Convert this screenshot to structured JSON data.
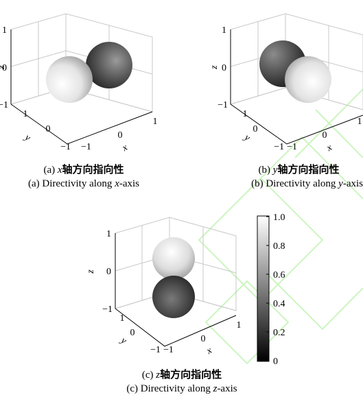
{
  "panels": [
    {
      "id": "a",
      "axis_labels": {
        "x": "x",
        "y": "y",
        "z": "z"
      },
      "ticks": {
        "z": [
          "1",
          "0",
          "−1"
        ],
        "y": [
          "1",
          "0",
          "−1"
        ],
        "x": [
          "−1",
          "0",
          "1"
        ]
      },
      "lobes": [
        "+x",
        "−x"
      ],
      "caption_cn": {
        "prefix": "(a) ",
        "var": "x",
        "text": "轴方向指向性"
      },
      "caption_en": {
        "prefix": "(a) Directivity along ",
        "var": "x",
        "suffix": "-axis"
      }
    },
    {
      "id": "b",
      "axis_labels": {
        "x": "x",
        "y": "y",
        "z": "z"
      },
      "ticks": {
        "z": [
          "1",
          "0",
          "−1"
        ],
        "y": [
          "1",
          "0",
          "−1"
        ],
        "x": [
          "−1",
          "0",
          "1"
        ]
      },
      "lobes": [
        "+y",
        "−y"
      ],
      "caption_cn": {
        "prefix": "(b) ",
        "var": "y",
        "text": "轴方向指向性"
      },
      "caption_en": {
        "prefix": "(b) Directivity along ",
        "var": "y",
        "suffix": "-axis"
      }
    },
    {
      "id": "c",
      "axis_labels": {
        "x": "x",
        "y": "y",
        "z": "z"
      },
      "ticks": {
        "z": [
          "1",
          "0",
          "−1"
        ],
        "y": [
          "1",
          "0",
          "−1"
        ],
        "x": [
          "−1",
          "0",
          "1"
        ]
      },
      "lobes": [
        "+z",
        "−z"
      ],
      "caption_cn": {
        "prefix": "(c) ",
        "var": "z",
        "text": "轴方向指向性"
      },
      "caption_en": {
        "prefix": "(c) Directivity along ",
        "var": "z",
        "suffix": "-axis"
      }
    }
  ],
  "colorbar": {
    "ticks": [
      "1.0",
      "0.8",
      "0.6",
      "0.4",
      "0.2",
      "0"
    ],
    "min": 0,
    "max": 1,
    "colormap": "gray",
    "color_low": "#000000",
    "color_high": "#ffffff"
  },
  "watermark_color": "#ccf5c0"
}
